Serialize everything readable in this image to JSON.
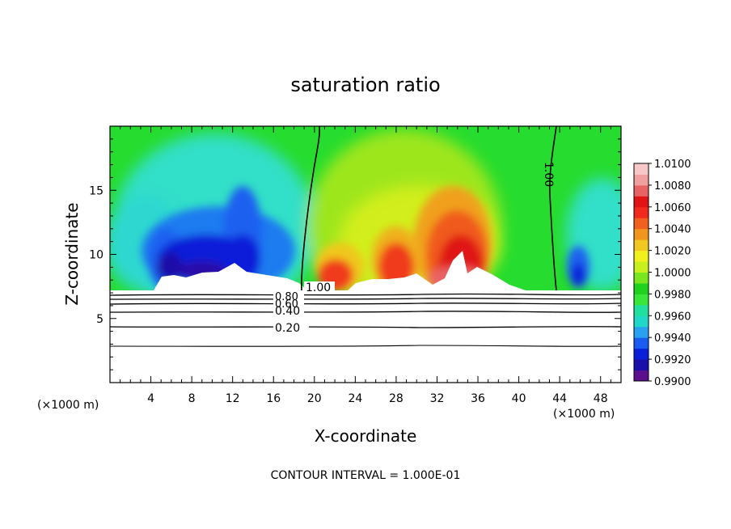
{
  "chart_data": {
    "type": "heatmap",
    "title": "saturation ratio",
    "xlabel": "X-coordinate",
    "ylabel": "Z-coordinate",
    "x_unit_label_left": "(×1000 m)",
    "x_unit_label_right": "(×1000 m)",
    "footer": "CONTOUR INTERVAL = 1.000E-01",
    "xlim": [
      0,
      50
    ],
    "ylim": [
      0,
      20
    ],
    "x_ticks": [
      4,
      8,
      12,
      16,
      20,
      24,
      28,
      32,
      36,
      40,
      44,
      48
    ],
    "x_tick_labels": [
      "4",
      "8",
      "12",
      "16",
      "20",
      "24",
      "28",
      "32",
      "36",
      "40",
      "44",
      "48"
    ],
    "y_ticks": [
      5,
      10,
      15
    ],
    "y_tick_labels": [
      "5",
      "10",
      "15"
    ],
    "colorbar": {
      "min": 0.99,
      "max": 1.01,
      "tick_labels": [
        "0.9900",
        "0.9920",
        "0.9940",
        "0.9960",
        "0.9980",
        "1.0000",
        "1.0020",
        "1.0040",
        "1.0060",
        "1.0080",
        "1.0100"
      ],
      "colors": [
        "#5b0f8c",
        "#1a0fa8",
        "#0a1fd8",
        "#1a5cf0",
        "#2aa0f0",
        "#1fd8c8",
        "#20e0a0",
        "#3ae63a",
        "#1fd21f",
        "#7ae61f",
        "#c8f01f",
        "#f0f01f",
        "#f0c81f",
        "#f0961f",
        "#f0601f",
        "#f02a1f",
        "#e01414",
        "#e86464",
        "#f0a0a0",
        "#f8c8c8"
      ]
    },
    "contour_lines": [
      {
        "label": "1.00",
        "x": [
          18.6,
          18.8,
          19.4,
          19.9,
          20.0,
          20.2
        ],
        "y": [
          7.2,
          9.5,
          12.0,
          15.0,
          18.0,
          19.8
        ]
      },
      {
        "label": "1.00",
        "x": [
          43.3,
          43.0,
          42.8,
          43.1,
          43.4,
          43.6
        ],
        "y": [
          7.2,
          10.0,
          13.0,
          16.0,
          18.0,
          19.8
        ]
      },
      {
        "label": "0.80",
        "x": [
          0,
          10,
          20,
          30,
          40,
          50
        ],
        "y": [
          6.8,
          6.75,
          6.8,
          6.8,
          6.75,
          6.8
        ]
      },
      {
        "label": "0.60",
        "x": [
          0,
          10,
          20,
          30,
          40,
          50
        ],
        "y": [
          6.35,
          6.3,
          6.35,
          6.35,
          6.3,
          6.35
        ]
      },
      {
        "label": "0.40",
        "x": [
          0,
          10,
          20,
          30,
          40,
          50
        ],
        "y": [
          5.8,
          5.75,
          5.8,
          5.8,
          5.75,
          5.8
        ]
      },
      {
        "label": "0.20",
        "x": [
          0,
          10,
          20,
          30,
          40,
          50
        ],
        "y": [
          4.4,
          4.45,
          4.45,
          4.45,
          4.4,
          4.45
        ]
      },
      {
        "label": "",
        "x": [
          0,
          10,
          20,
          30,
          40,
          50
        ],
        "y": [
          2.9,
          2.85,
          2.9,
          2.9,
          2.85,
          2.9
        ]
      }
    ],
    "contour_label_texts": [
      "1.00",
      "1.00",
      "0.80",
      "0.60",
      "0.40",
      "0.20"
    ],
    "cloud_base_z": 7.2,
    "features": [
      {
        "name": "dry-core-west",
        "x": 10.5,
        "z": 9.8,
        "value": 0.9905
      },
      {
        "name": "moist-core-east",
        "x": 34.5,
        "z": 10.5,
        "value": 1.0095
      },
      {
        "name": "moist-peak-28",
        "x": 28.0,
        "z": 10.8,
        "value": 1.0065
      },
      {
        "name": "moist-peak-22",
        "x": 21.5,
        "z": 9.8,
        "value": 1.007
      },
      {
        "name": "dry-pocket-east",
        "x": 45.0,
        "z": 9.2,
        "value": 0.9935
      }
    ]
  }
}
